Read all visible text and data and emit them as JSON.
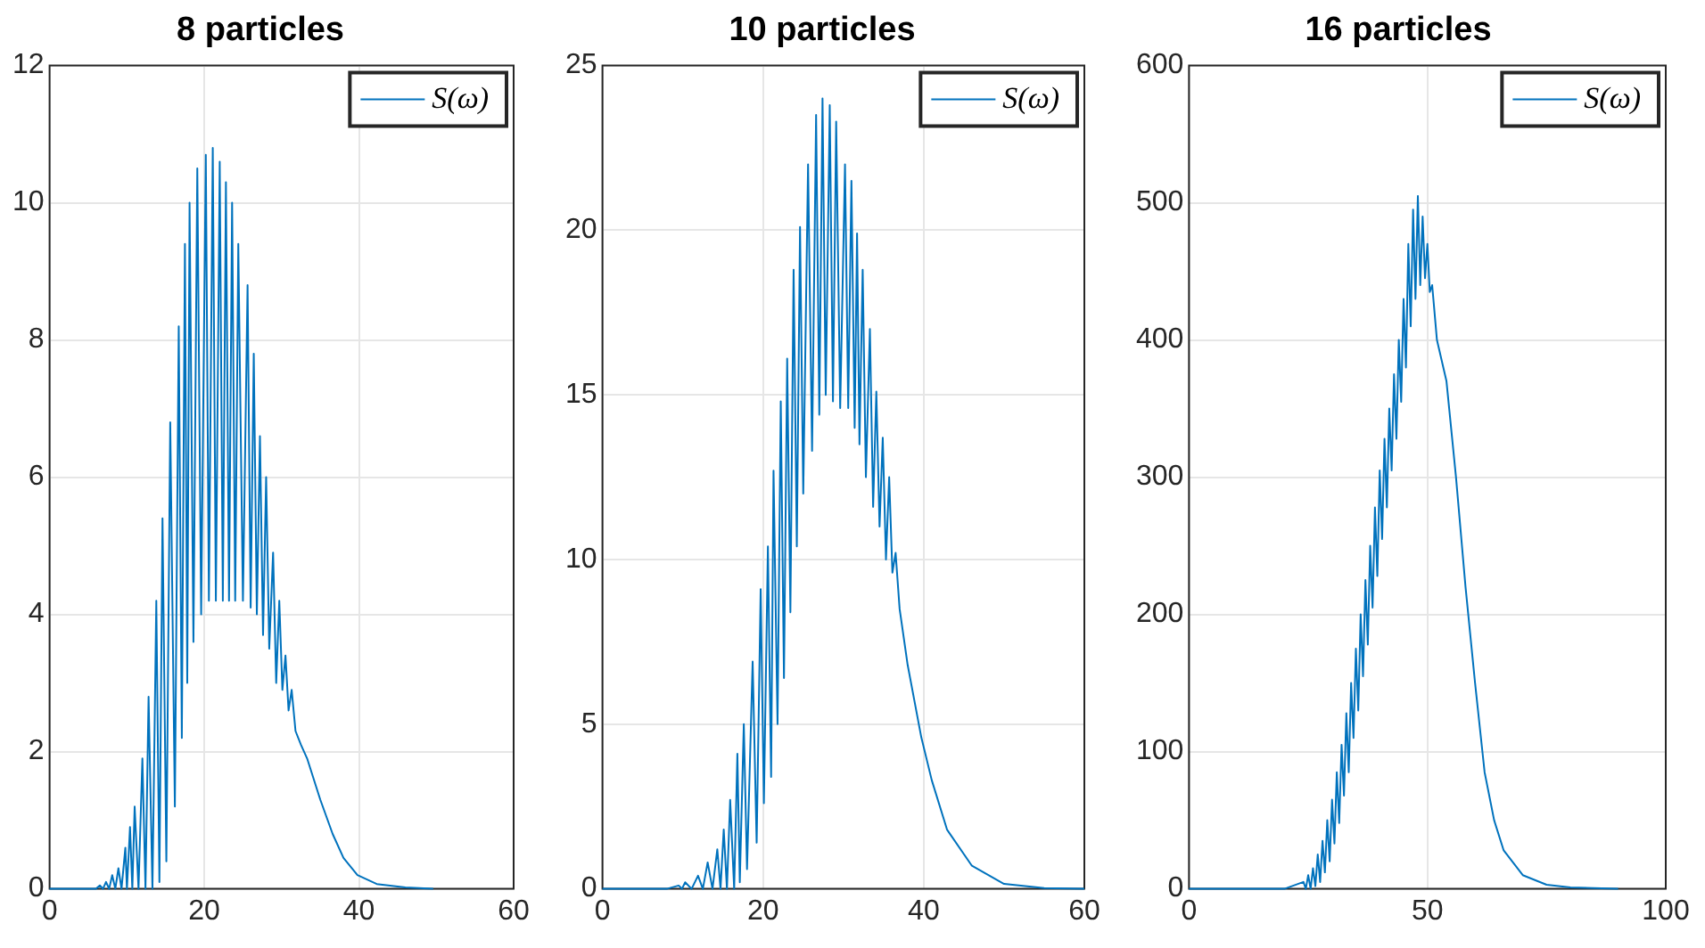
{
  "chart_data": [
    {
      "type": "line",
      "title": "8 particles",
      "legend": "top right",
      "grid": true,
      "marker": "none",
      "line_style": "solid",
      "x": [
        0,
        6,
        6.5,
        6.9,
        7.3,
        7.7,
        8.1,
        8.5,
        8.9,
        9.3,
        9.8,
        10.0,
        10.4,
        10.7,
        11,
        11.5,
        12,
        12.4,
        12.8,
        13.3,
        13.8,
        14.2,
        14.6,
        15.1,
        15.6,
        16.2,
        16.7,
        17.1,
        17.5,
        17.8,
        18.1,
        18.6,
        19.1,
        19.6,
        20.2,
        20.6,
        21.1,
        21.5,
        22,
        22.4,
        22.8,
        23.2,
        23.6,
        24,
        24.4,
        25,
        25.6,
        26,
        26.4,
        26.8,
        27.2,
        27.6,
        28,
        28.4,
        28.9,
        29.3,
        29.7,
        30.1,
        30.5,
        30.9,
        31.3,
        31.8,
        32.5,
        33.3,
        35,
        36.6,
        38,
        39.8,
        42.3,
        46,
        49.6
      ],
      "series": [
        {
          "name": "S(ω)",
          "color": "#0072bd",
          "values": [
            0,
            0,
            0.05,
            0,
            0.1,
            0,
            0.2,
            0,
            0.3,
            0,
            0.6,
            0,
            0.9,
            0,
            1.2,
            0,
            1.9,
            0,
            2.8,
            0,
            4.2,
            0.1,
            5.4,
            0.4,
            6.8,
            1.2,
            8.2,
            2.2,
            9.4,
            3.0,
            10.0,
            3.6,
            10.5,
            4.0,
            10.7,
            4.2,
            10.8,
            4.2,
            10.6,
            4.2,
            10.3,
            4.2,
            10.0,
            4.2,
            9.4,
            4.2,
            8.8,
            4.1,
            7.8,
            4.0,
            6.6,
            3.7,
            6.0,
            3.5,
            4.9,
            3.0,
            4.2,
            2.9,
            3.4,
            2.6,
            2.9,
            2.3,
            2.1,
            1.9,
            1.3,
            0.8,
            0.45,
            0.2,
            0.07,
            0.02,
            0
          ]
        }
      ],
      "xlim": [
        0,
        60
      ],
      "xticks": [
        0,
        20,
        40,
        60
      ],
      "ylim": [
        0,
        12
      ],
      "yticks": [
        0,
        2,
        4,
        6,
        8,
        10,
        12
      ]
    },
    {
      "type": "line",
      "title": "10 particles",
      "legend": "top right",
      "grid": true,
      "marker": "none",
      "line_style": "solid",
      "x": [
        0,
        8,
        9.5,
        9.9,
        10.3,
        11.1,
        11.9,
        12.5,
        13.1,
        13.7,
        14.3,
        14.7,
        15.1,
        15.5,
        15.9,
        16.4,
        16.8,
        17.1,
        17.6,
        18,
        18.7,
        19.2,
        19.7,
        20.1,
        20.6,
        21,
        21.3,
        21.8,
        22.2,
        22.6,
        23,
        23.4,
        23.8,
        24.2,
        24.6,
        25,
        25.6,
        26.1,
        26.6,
        27,
        27.4,
        27.8,
        28.3,
        28.7,
        29.1,
        29.6,
        30.2,
        30.6,
        31,
        31.4,
        31.7,
        32,
        32.4,
        32.8,
        33.3,
        33.7,
        34.1,
        34.5,
        34.9,
        35.3,
        35.7,
        36.1,
        36.5,
        37,
        38,
        39.7,
        41,
        42.9,
        46,
        50,
        55,
        60
      ],
      "series": [
        {
          "name": "S(ω)",
          "color": "#0072bd",
          "values": [
            0,
            0,
            0.1,
            0,
            0.2,
            0,
            0.4,
            0,
            0.8,
            0,
            1.2,
            0,
            1.8,
            0,
            2.7,
            0,
            4.1,
            0.2,
            5.0,
            0.6,
            6.9,
            1.4,
            9.1,
            2.6,
            10.4,
            3.4,
            12.7,
            5.0,
            14.8,
            6.4,
            16.1,
            8.4,
            18.8,
            10.4,
            20.1,
            12.0,
            22.0,
            13.3,
            23.5,
            14.4,
            24.0,
            15.0,
            23.8,
            14.8,
            23.3,
            14.6,
            22.0,
            14.6,
            21.5,
            14.0,
            19.9,
            13.5,
            18.8,
            12.5,
            17.0,
            11.6,
            15.1,
            11.0,
            13.7,
            10.0,
            12.5,
            9.6,
            10.2,
            8.5,
            6.8,
            4.6,
            3.3,
            1.8,
            0.7,
            0.15,
            0.02,
            0
          ]
        }
      ],
      "xlim": [
        0,
        60
      ],
      "xticks": [
        0,
        20,
        40,
        60
      ],
      "ylim": [
        0,
        25
      ],
      "yticks": [
        0,
        5,
        10,
        15,
        20,
        25
      ]
    },
    {
      "type": "line",
      "title": "16 particles",
      "legend": "top right",
      "grid": true,
      "marker": "none",
      "line_style": "solid",
      "x": [
        0,
        20,
        24,
        24.5,
        25,
        25.5,
        26,
        26.5,
        27,
        27.5,
        28,
        28.5,
        29,
        29.5,
        30,
        30.5,
        31,
        31.5,
        32,
        32.5,
        33,
        33.5,
        34,
        34.5,
        35,
        35.5,
        36,
        36.5,
        37,
        37.5,
        38,
        38.5,
        39,
        39.5,
        40,
        40.5,
        41,
        41.5,
        42,
        42.5,
        43,
        43.5,
        44,
        44.5,
        45,
        45.5,
        46,
        46.5,
        47,
        47.5,
        48,
        48.5,
        49,
        49.5,
        50,
        50.5,
        51,
        51.5,
        52,
        54,
        56,
        58,
        60,
        62,
        64,
        66,
        70,
        75,
        80,
        90
      ],
      "series": [
        {
          "name": "S(ω)",
          "color": "#0072bd",
          "values": [
            0,
            0,
            5,
            0,
            10,
            0,
            15,
            2,
            25,
            5,
            35,
            12,
            50,
            20,
            65,
            33,
            85,
            48,
            105,
            68,
            128,
            85,
            150,
            110,
            175,
            130,
            200,
            155,
            225,
            178,
            250,
            205,
            278,
            228,
            305,
            255,
            328,
            278,
            350,
            305,
            375,
            328,
            400,
            355,
            430,
            380,
            470,
            410,
            495,
            430,
            505,
            440,
            490,
            445,
            470,
            435,
            440,
            420,
            400,
            370,
            300,
            220,
            150,
            85,
            50,
            28,
            10,
            3,
            1,
            0
          ]
        }
      ],
      "xlim": [
        0,
        100
      ],
      "xticks": [
        0,
        50,
        100
      ],
      "ylim": [
        0,
        600
      ],
      "yticks": [
        0,
        100,
        200,
        300,
        400,
        500,
        600
      ]
    }
  ]
}
